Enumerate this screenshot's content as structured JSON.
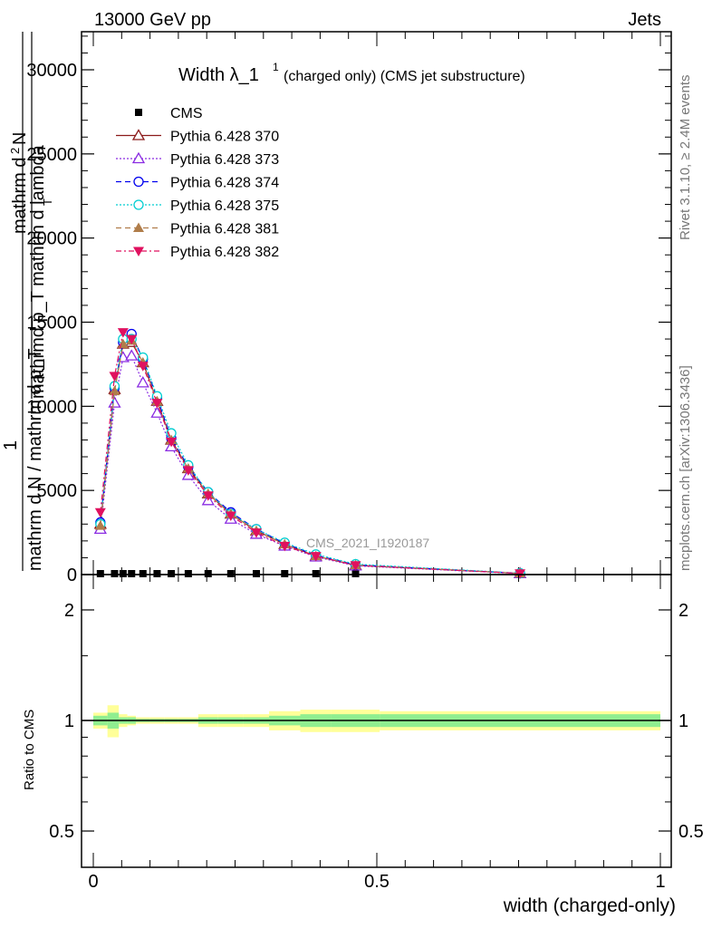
{
  "header": {
    "left": "13000 GeV pp",
    "right": "Jets"
  },
  "side_labels": {
    "rivet": "Rivet 3.1.10, ≥ 2.4M events",
    "mcplots": "mcplots.cern.ch [arXiv:1306.3436]"
  },
  "watermark": "CMS_2021_I1920187",
  "colors": {
    "cms": "#000000",
    "p370": "#8b1a1a",
    "p373": "#8a2be2",
    "p374": "#0000ee",
    "p375": "#00ced1",
    "p381": "#b07d4a",
    "p382": "#e0115f",
    "band_inner": "#90ee90",
    "band_outer": "#ffff99"
  },
  "chart_data": [
    {
      "type": "line",
      "title_main": "Width λ_1",
      "title_sup": "1",
      "title_rest": "(charged only) (CMS jet substructure)",
      "ylabel": {
        "numerator_top": "mathrm d",
        "numerator_sup": "2",
        "numerator_n": "N",
        "denominator": "mathrmd p_T mathrm d lambda",
        "denominator_sub": "T",
        "one": "1",
        "prefactor": "mathrm d N / mathrm d p_T"
      },
      "xlim": [
        0,
        1
      ],
      "ylim": [
        0,
        32500
      ],
      "yticks": [
        0,
        5000,
        10000,
        15000,
        20000,
        25000,
        30000
      ],
      "ytick_labels": [
        "0",
        "5000",
        "10000",
        "15000",
        "20000",
        "25000",
        "30000"
      ],
      "x": [
        0.0125,
        0.0375,
        0.0525,
        0.0675,
        0.0875,
        0.1125,
        0.1375,
        0.1675,
        0.2025,
        0.2425,
        0.2875,
        0.3375,
        0.3925,
        0.4625,
        0.7525
      ],
      "series": [
        {
          "name": "CMS",
          "marker": "square-filled",
          "color_key": "cms",
          "values": [
            0,
            0,
            0,
            0,
            0,
            0,
            0,
            0,
            0,
            0,
            0,
            0,
            0,
            0,
            0
          ]
        },
        {
          "name": "Pythia 6.428 370",
          "marker": "triangle-open",
          "color_key": "p370",
          "dash": "",
          "values": [
            3000,
            11000,
            13700,
            13800,
            12600,
            10300,
            8000,
            6300,
            4800,
            3600,
            2600,
            1800,
            1100,
            550,
            70
          ]
        },
        {
          "name": "Pythia 6.428 373",
          "marker": "triangle-open",
          "color_key": "p373",
          "dash": "2,2",
          "values": [
            2700,
            10200,
            12900,
            13000,
            11400,
            9600,
            7600,
            5900,
            4400,
            3300,
            2400,
            1700,
            1050,
            520,
            60
          ]
        },
        {
          "name": "Pythia 6.428 374",
          "marker": "circle-open",
          "color_key": "p374",
          "dash": "6,4",
          "values": [
            3100,
            11100,
            13800,
            14300,
            12800,
            10500,
            8100,
            6400,
            4900,
            3700,
            2700,
            1850,
            1150,
            580,
            75
          ]
        },
        {
          "name": "Pythia 6.428 375",
          "marker": "circle-open",
          "color_key": "p375",
          "dash": "2,2",
          "values": [
            3000,
            11200,
            14000,
            14000,
            12900,
            10600,
            8400,
            6500,
            4900,
            3600,
            2700,
            1900,
            1200,
            620,
            80
          ]
        },
        {
          "name": "Pythia 6.428 381",
          "marker": "triangle-filled",
          "color_key": "p381",
          "dash": "6,4",
          "values": [
            2900,
            10900,
            13700,
            13900,
            12600,
            10300,
            8000,
            6300,
            4800,
            3600,
            2600,
            1800,
            1100,
            560,
            70
          ]
        },
        {
          "name": "Pythia 6.428 382",
          "marker": "triangle-down-filled",
          "color_key": "p382",
          "dash": "6,3,2,3",
          "values": [
            3700,
            11800,
            14400,
            14000,
            12400,
            10200,
            7900,
            6200,
            4700,
            3500,
            2500,
            1700,
            1100,
            550,
            70
          ]
        }
      ]
    },
    {
      "type": "area",
      "ylabel": "Ratio to CMS",
      "xlabel": "width (charged-only)",
      "xlim": [
        0,
        1
      ],
      "ylim": [
        0.38,
        2.25
      ],
      "yticks": [
        0.5,
        1,
        2
      ],
      "ytick_labels": [
        "0.5",
        "1",
        "2"
      ],
      "xticks": [
        0,
        0.5,
        1
      ],
      "xtick_labels": [
        "0",
        "0.5",
        "1"
      ],
      "band_edges": [
        0.0,
        0.025,
        0.045,
        0.06,
        0.075,
        0.1,
        0.125,
        0.15,
        0.185,
        0.22,
        0.265,
        0.31,
        0.365,
        0.42,
        0.505,
        1.0
      ],
      "inner_lo": [
        0.97,
        0.95,
        0.98,
        0.98,
        0.99,
        0.99,
        0.99,
        0.99,
        0.98,
        0.98,
        0.98,
        0.97,
        0.96,
        0.96,
        0.96
      ],
      "inner_hi": [
        1.03,
        1.05,
        1.02,
        1.02,
        1.01,
        1.01,
        1.01,
        1.01,
        1.02,
        1.02,
        1.02,
        1.03,
        1.04,
        1.04,
        1.04
      ],
      "outer_lo": [
        0.95,
        0.9,
        0.96,
        0.97,
        0.98,
        0.98,
        0.98,
        0.98,
        0.96,
        0.96,
        0.96,
        0.94,
        0.93,
        0.93,
        0.94
      ],
      "outer_hi": [
        1.05,
        1.1,
        1.04,
        1.03,
        1.02,
        1.02,
        1.02,
        1.02,
        1.04,
        1.04,
        1.04,
        1.06,
        1.07,
        1.07,
        1.06
      ]
    }
  ]
}
